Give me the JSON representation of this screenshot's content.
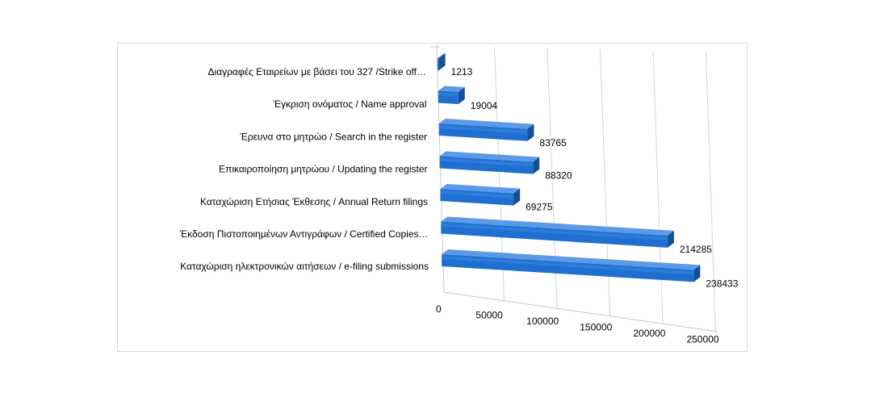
{
  "chart_data": {
    "type": "bar",
    "orientation": "horizontal",
    "style": "3d",
    "bar_color": "#1f6fd1",
    "categories": [
      "Διαγραφές Εταιρείων  με  βάσει του 327 /Strike off…",
      "Έγκριση ονόματος / Name approval",
      "Έρευνα στο μητρώο / Search in the register",
      "Επικαιροποίηση μητρώου / Updating the register",
      "Καταχώριση Ετήσιας Έκθεσης / Annual Return filings",
      "Έκδοση Πιστοποιημένων Αντιγράφων  / Certified Copies…",
      "Καταχώριση ηλεκτρονικών αιτήσεων / e-filing submissions"
    ],
    "values": [
      1213,
      19004,
      83765,
      88320,
      69275,
      214285,
      238433
    ],
    "value_labels": [
      "1213",
      "19004",
      "83765",
      "88320",
      "69275",
      "214285",
      "238433"
    ],
    "xlim": [
      0,
      250000
    ],
    "x_ticks": [
      0,
      50000,
      100000,
      150000,
      200000,
      250000
    ],
    "x_tick_labels": [
      "0",
      "50000",
      "100000",
      "150000",
      "200000",
      "250000"
    ],
    "gridlines": true,
    "legend": "none"
  }
}
